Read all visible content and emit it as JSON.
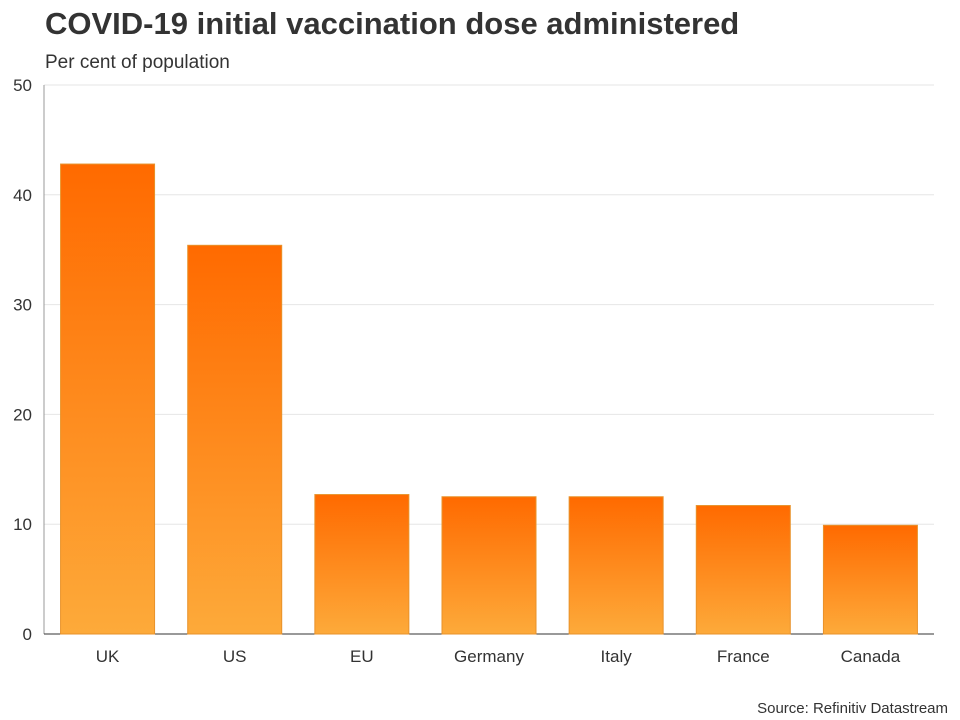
{
  "chart_data": {
    "type": "bar",
    "title": "COVID-19 initial vaccination dose administered",
    "subtitle": "Per cent of population",
    "source": "Source: Refinitiv Datastream",
    "xlabel": "",
    "ylabel": "",
    "categories": [
      "UK",
      "US",
      "EU",
      "Germany",
      "Italy",
      "France",
      "Canada"
    ],
    "values": [
      42.8,
      35.4,
      12.7,
      12.5,
      12.5,
      11.7,
      9.9
    ],
    "ylim": [
      0,
      50
    ],
    "yticks": [
      0,
      10,
      20,
      30,
      40,
      50
    ],
    "grid": true,
    "bar_color_top": "#ff6a00",
    "bar_color_bottom": "#fdaa3a",
    "bar_edge_color": "#e8922a"
  }
}
